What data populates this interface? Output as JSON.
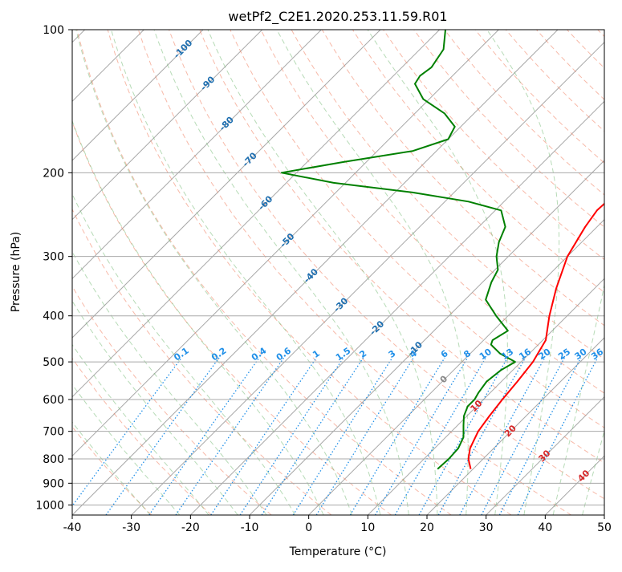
{
  "chart_data": {
    "type": "line",
    "title": "wetPf2_C2E1.2020.253.11.59.R01",
    "xlabel": "Temperature (°C)",
    "ylabel": "Pressure (hPa)",
    "xlim": [
      -40,
      50
    ],
    "ylim": [
      1050,
      100
    ],
    "y_scale": "log",
    "grid": true,
    "x_ticks": [
      -40,
      -30,
      -20,
      -10,
      0,
      10,
      20,
      30,
      40,
      50
    ],
    "y_ticks": [
      100,
      200,
      300,
      400,
      500,
      600,
      700,
      800,
      900,
      1000
    ],
    "colors": {
      "temperature": "#ff0000",
      "dewpoint": "#008000",
      "mixing_ratio": "#1f8fe8",
      "dry_adiabat": "#f08060",
      "moist_adiabat": "#70b870",
      "isotherm": "#999999",
      "grid": "#aaaaaa"
    },
    "series": [
      {
        "role": "temperature",
        "p": [
          840,
          800,
          760,
          700,
          650,
          600,
          550,
          500,
          450,
          400,
          350,
          300,
          260,
          240,
          220,
          200,
          180,
          160,
          150,
          140,
          130,
          120,
          110,
          100
        ],
        "t": [
          19.6,
          17.5,
          16.0,
          14.5,
          13.8,
          13.2,
          12.7,
          12.0,
          10.5,
          7.0,
          3.5,
          0.0,
          -2.0,
          -2.8,
          -2.5,
          -3.0,
          -5.5,
          -9.0,
          -11.5,
          -14.0,
          -17.5,
          -22.5,
          -27.0,
          -31.5
        ]
      },
      {
        "role": "dewpoint",
        "p": [
          840,
          800,
          760,
          720,
          680,
          650,
          620,
          600,
          580,
          550,
          520,
          500,
          480,
          460,
          450,
          430,
          400,
          370,
          340,
          320,
          300,
          280,
          260,
          240,
          230,
          220,
          210,
          200,
          190,
          180,
          170,
          160,
          150,
          140,
          130,
          125,
          120,
          110,
          100
        ],
        "t": [
          14.0,
          14.2,
          14.0,
          13.0,
          11.0,
          9.5,
          8.5,
          8.5,
          8.0,
          7.5,
          8.0,
          9.0,
          5.0,
          2.0,
          1.5,
          2.5,
          -2.0,
          -6.5,
          -8.5,
          -9.5,
          -12.0,
          -14.0,
          -15.5,
          -19.0,
          -26.0,
          -37.0,
          -52.0,
          -62.5,
          -54.0,
          -44.0,
          -40.0,
          -41.0,
          -45.0,
          -51.0,
          -55.0,
          -55.5,
          -55.0,
          -56.0,
          -59.0
        ]
      }
    ],
    "mixing_ratio_labels": [
      "0.1",
      "0.2",
      "0.4",
      "0.6",
      "1",
      "1.5",
      "2",
      "3",
      "4",
      "6",
      "8",
      "10",
      "13",
      "16",
      "20",
      "25",
      "30",
      "36"
    ],
    "dry_adiabat_labels": [
      "-100",
      "-90",
      "-80",
      "-70",
      "-60",
      "-50",
      "-40",
      "-30",
      "-20",
      "-10"
    ],
    "moist_adiabat_labels": [
      "0",
      "10",
      "20",
      "30",
      "40"
    ]
  }
}
